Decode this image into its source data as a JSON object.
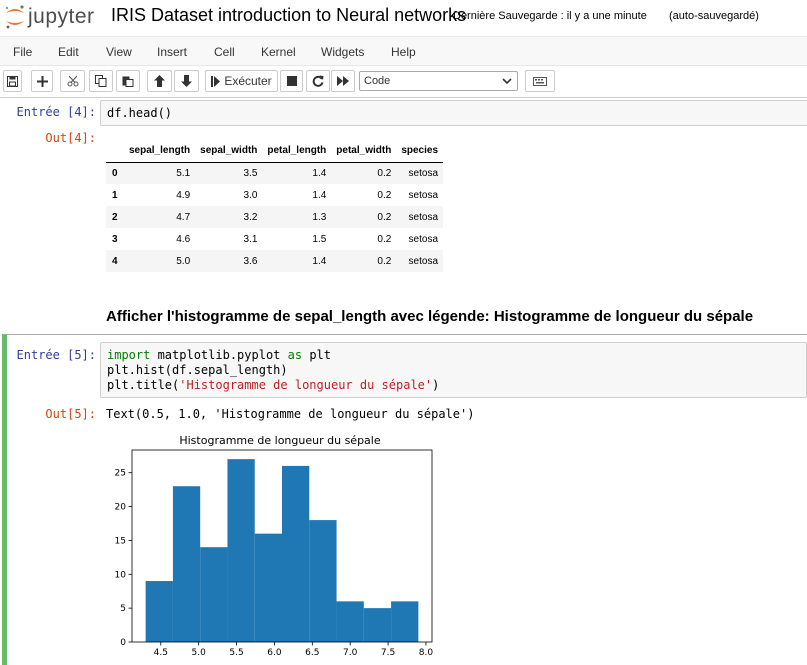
{
  "header": {
    "logo_text": "jupyter",
    "notebook_title": "IRIS Dataset introduction to Neural networks",
    "checkpoint": "Dernière Sauvegarde : il y a une minute",
    "autosave": "(auto-sauvegardé)"
  },
  "menu": [
    "File",
    "Edit",
    "View",
    "Insert",
    "Cell",
    "Kernel",
    "Widgets",
    "Help"
  ],
  "toolbar": {
    "run_label": "Exécuter",
    "cell_type": "Code",
    "icons": [
      "save-icon",
      "plus-icon",
      "scissors-icon",
      "copy-icon",
      "paste-icon",
      "arrow-up-icon",
      "arrow-down-icon",
      "step-forward-icon",
      "stop-icon",
      "restart-icon",
      "fast-forward-icon",
      "keyboard-icon"
    ]
  },
  "cells": {
    "cell4": {
      "in_prompt": "Entrée [4]:",
      "code": "df.head()",
      "out_prompt": "Out[4]:",
      "table": {
        "columns": [
          "sepal_length",
          "sepal_width",
          "petal_length",
          "petal_width",
          "species"
        ],
        "rows": [
          {
            "index": "0",
            "values": [
              "5.1",
              "3.5",
              "1.4",
              "0.2",
              "setosa"
            ]
          },
          {
            "index": "1",
            "values": [
              "4.9",
              "3.0",
              "1.4",
              "0.2",
              "setosa"
            ]
          },
          {
            "index": "2",
            "values": [
              "4.7",
              "3.2",
              "1.3",
              "0.2",
              "setosa"
            ]
          },
          {
            "index": "3",
            "values": [
              "4.6",
              "3.1",
              "1.5",
              "0.2",
              "setosa"
            ]
          },
          {
            "index": "4",
            "values": [
              "5.0",
              "3.6",
              "1.4",
              "0.2",
              "setosa"
            ]
          }
        ]
      }
    },
    "markdown": {
      "heading": "Afficher l'histogramme de sepal_length avec légende: Histogramme de longueur du sépale"
    },
    "cell5": {
      "in_prompt": "Entrée [5]:",
      "code": {
        "line1_kw1": "import",
        "line1_mid": " matplotlib.pyplot ",
        "line1_kw2": "as",
        "line1_end": " plt",
        "line2": "plt.hist(df.sepal_length)",
        "line3_pre": "plt.title(",
        "line3_str": "'Histogramme de longueur du sépale'",
        "line3_post": ")"
      },
      "out_prompt": "Out[5]:",
      "output_text": "Text(0.5, 1.0, 'Histogramme de longueur du sépale')"
    }
  },
  "colors": {
    "bar": "#1f77b4",
    "in_prompt": "#303f9f",
    "out_prompt": "#d84315",
    "selected_border": "#66bb6a"
  },
  "chart_data": {
    "type": "bar",
    "title": "Histogramme de longueur du sépale",
    "xlabel": "",
    "ylabel": "",
    "bin_edges": [
      4.3,
      4.66,
      5.02,
      5.38,
      5.74,
      6.1,
      6.46,
      6.82,
      7.18,
      7.54,
      7.9
    ],
    "values": [
      9,
      23,
      14,
      27,
      16,
      26,
      18,
      6,
      5,
      6
    ],
    "xlim": [
      4.12,
      8.08
    ],
    "ylim": [
      0,
      28.35
    ],
    "xticks": [
      4.5,
      5.0,
      5.5,
      6.0,
      6.5,
      7.0,
      7.5,
      8.0
    ],
    "xtick_labels": [
      "4.5",
      "5.0",
      "5.5",
      "6.0",
      "6.5",
      "7.0",
      "7.5",
      "8.0"
    ],
    "yticks": [
      0,
      5,
      10,
      15,
      20,
      25
    ],
    "ytick_labels": [
      "0",
      "5",
      "10",
      "15",
      "20",
      "25"
    ],
    "grid": false
  }
}
